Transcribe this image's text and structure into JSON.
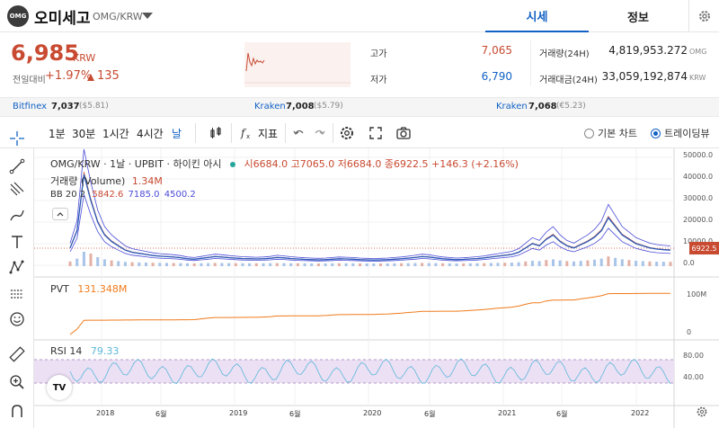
{
  "header": {
    "logo_text": "OMG",
    "coin_name": "오미세고",
    "pair": "OMG/KRW",
    "tabs": [
      {
        "label": "시세",
        "active": true
      },
      {
        "label": "정보",
        "active": false
      }
    ]
  },
  "price": {
    "current": "6,985",
    "unit": "KRW",
    "change_label": "전일대비",
    "change_rate": "+1.97%",
    "change_amount": "135",
    "up_color": "#c84a31"
  },
  "stats": {
    "high_label": "고가",
    "high_value": "7,065",
    "low_label": "저가",
    "low_value": "6,790",
    "volume_label": "거래량(24H)",
    "volume_value": "4,819,953.272",
    "volume_unit": "OMG",
    "amount_label": "거래대금(24H)",
    "amount_value": "33,059,192,874",
    "amount_unit": "KRW"
  },
  "exchanges": [
    {
      "name": "Bitfinex",
      "price": "7,037",
      "usd": "($5.81)"
    },
    {
      "name": "Kraken",
      "price": "7,008",
      "usd": "($5.79)"
    },
    {
      "name": "Kraken",
      "price": "7,068",
      "usd": "(€5.23)"
    }
  ],
  "toolbar": {
    "intervals": [
      {
        "label": "1분",
        "selected": false
      },
      {
        "label": "30분",
        "selected": false
      },
      {
        "label": "1시간",
        "selected": false
      },
      {
        "label": "4시간",
        "selected": false
      },
      {
        "label": "날",
        "selected": true
      }
    ],
    "indicators_label": "지표",
    "basic_chart_label": "기본 차트",
    "tradingview_label": "트레이딩뷰",
    "selected_view": "tradingview"
  },
  "chart_legend": {
    "symbol": "OMG/KRW · 1날 · UPBIT · 하이킨 아시",
    "open": "시6684.0",
    "high": "고7065.0",
    "low": "저6684.0",
    "close": "종6922.5",
    "change": "+146.3 (+2.16%)",
    "volume_label": "거래량 (Volume)",
    "volume_value": "1.34M",
    "bb_label": "BB 20 2",
    "bb_mid": "5842.6",
    "bb_up": "7185.0",
    "bb_low": "4500.2",
    "pvt_label": "PVT",
    "pvt_value": "131.348M",
    "rsi_label": "RSI 14",
    "rsi_value": "79.33",
    "last_price_tag": "6922.5"
  },
  "chart_data": {
    "type": "line",
    "x_ticks": [
      "2018",
      "6월",
      "2019",
      "6월",
      "2020",
      "6월",
      "2021",
      "6월",
      "2022",
      "6월"
    ],
    "price_axis": [
      "50000.0",
      "40000.0",
      "30000.0",
      "20000.0",
      "10000.0",
      "0.0"
    ],
    "pvt_axis": [
      "100M",
      "0"
    ],
    "rsi_axis": [
      "80.00",
      "40.00"
    ],
    "series": [
      {
        "values": [
          8000,
          16000,
          42000,
          30000,
          20000,
          14000,
          11000,
          9000,
          7000,
          6000,
          5500,
          5000,
          4500,
          4200,
          4000,
          3800,
          3500,
          3000,
          2800,
          3200,
          3600,
          4000,
          3800,
          3500,
          3300,
          3100,
          3000,
          2900,
          3000,
          3200,
          3600,
          3400,
          3100,
          2900,
          2700,
          2600,
          2500,
          2600,
          2800,
          3000,
          2900,
          2800,
          2600,
          2500,
          2400,
          2500,
          2600,
          2800,
          3000,
          3300,
          3600,
          4000,
          3800,
          3400,
          3000,
          2800,
          2600,
          2700,
          2900,
          3100,
          3400,
          3800,
          4200,
          4600,
          5000,
          6000,
          8000,
          10000,
          9000,
          12000,
          14000,
          11000,
          9000,
          8000,
          9500,
          11000,
          13000,
          16000,
          22000,
          18000,
          14000,
          12000,
          10000,
          9000,
          8000,
          7500,
          7200,
          7000
        ]
      }
    ],
    "y_range": [
      0,
      50000
    ],
    "grid": true,
    "legend_placement": "top-left"
  }
}
